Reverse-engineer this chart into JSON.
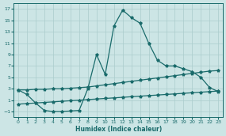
{
  "xlabel": "Humidex (Indice chaleur)",
  "background_color": "#cce5e5",
  "grid_color": "#aacccc",
  "line_color": "#1a6b6b",
  "x_values": [
    0,
    1,
    2,
    3,
    4,
    5,
    6,
    7,
    8,
    9,
    10,
    11,
    12,
    13,
    14,
    15,
    16,
    17,
    18,
    19,
    20,
    21,
    22,
    23
  ],
  "curve1": [
    2.8,
    2.0,
    0.5,
    -0.8,
    -1.0,
    -1.0,
    -0.9,
    -0.8,
    3.0,
    9.0,
    5.5,
    14.0,
    16.8,
    15.5,
    14.5,
    11.0,
    8.0,
    7.0,
    7.0,
    6.5,
    6.0,
    5.0,
    3.2,
    2.5
  ],
  "curve2": [
    2.8,
    2.8,
    2.9,
    2.9,
    3.0,
    3.0,
    3.1,
    3.2,
    3.3,
    3.5,
    3.7,
    3.9,
    4.1,
    4.3,
    4.5,
    4.7,
    4.9,
    5.1,
    5.3,
    5.5,
    5.7,
    5.9,
    6.1,
    6.2
  ],
  "curve3": [
    0.3,
    0.4,
    0.5,
    0.6,
    0.7,
    0.8,
    0.9,
    1.0,
    1.1,
    1.2,
    1.3,
    1.4,
    1.5,
    1.6,
    1.7,
    1.8,
    1.9,
    2.0,
    2.1,
    2.2,
    2.3,
    2.4,
    2.5,
    2.6
  ],
  "ylim": [
    -2,
    18
  ],
  "yticks": [
    -1,
    1,
    3,
    5,
    7,
    9,
    11,
    13,
    15,
    17
  ],
  "xticks": [
    0,
    1,
    2,
    3,
    4,
    5,
    6,
    7,
    8,
    9,
    10,
    11,
    12,
    13,
    14,
    15,
    16,
    17,
    18,
    19,
    20,
    21,
    22,
    23
  ]
}
